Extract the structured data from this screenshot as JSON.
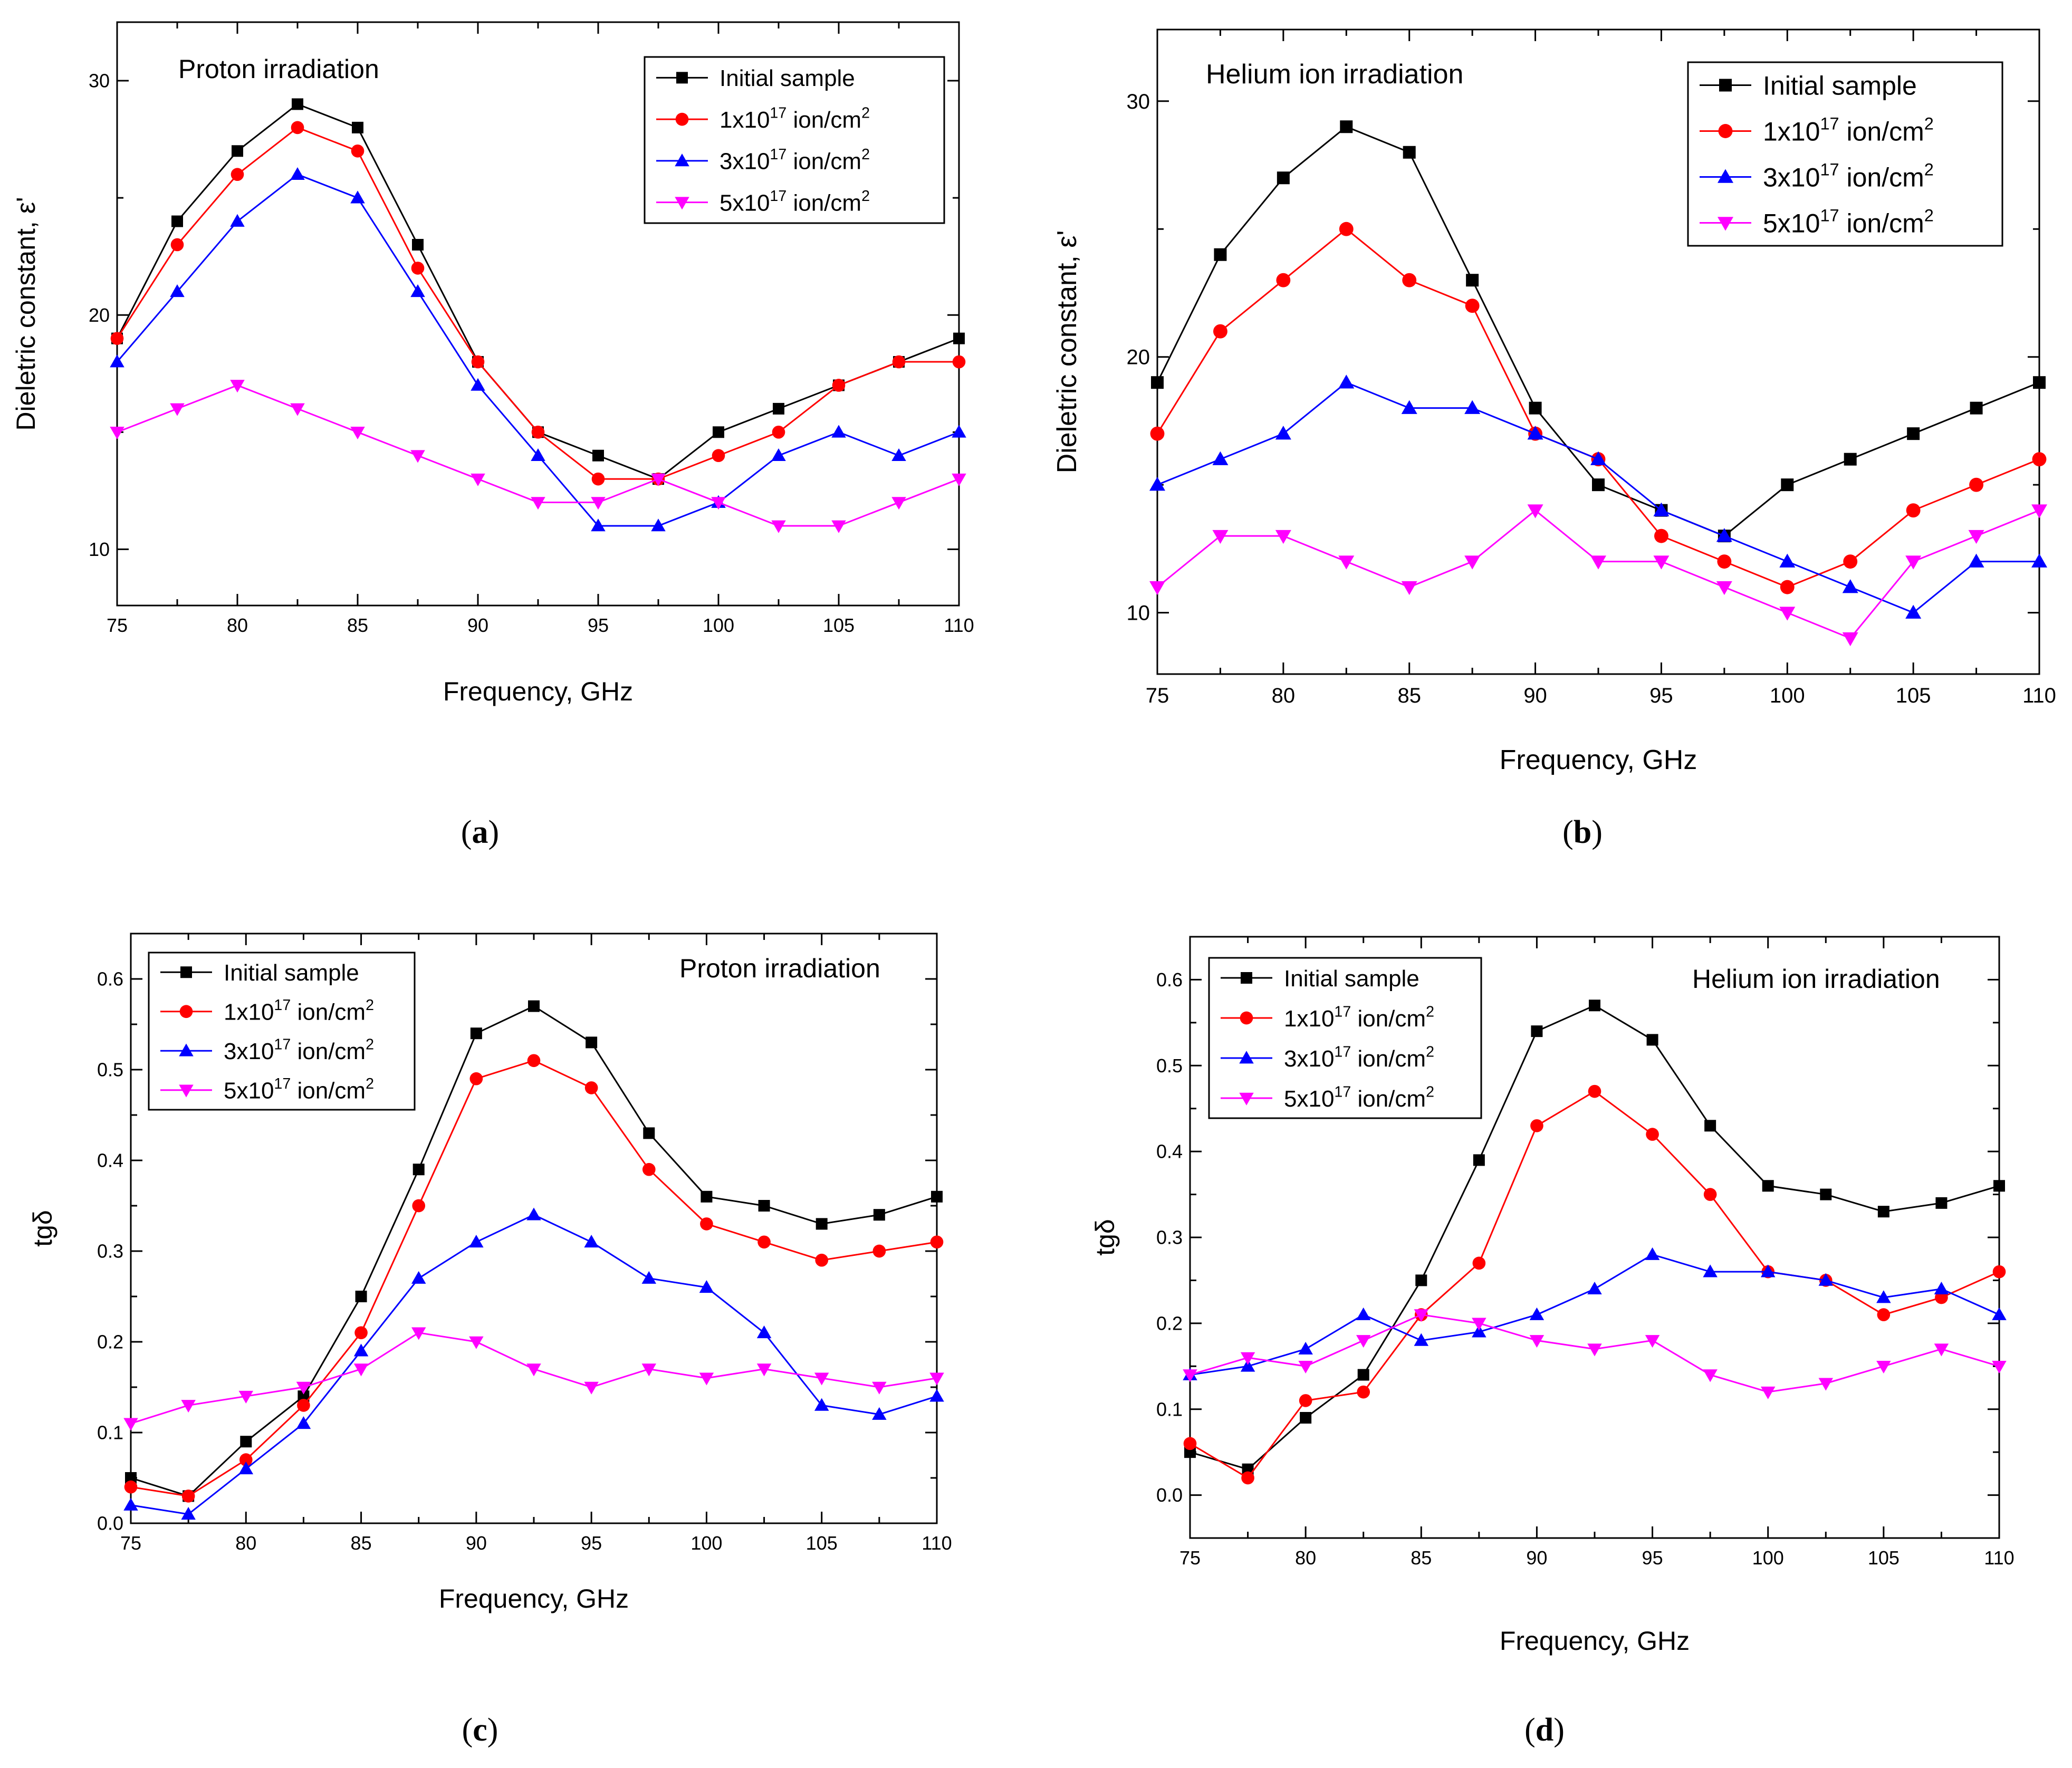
{
  "series_names": [
    "Initial sample",
    "1x10^17 ion/cm^2",
    "3x10^17 ion/cm^2",
    "5x10^17 ion/cm^2"
  ],
  "series_colors": [
    "#000000",
    "#ff0000",
    "#0000ff",
    "#ff00ff"
  ],
  "series_markers": [
    "square",
    "circle",
    "triangle-up",
    "triangle-down"
  ],
  "legend_parts": [
    {
      "main": "Initial sample"
    },
    {
      "pre": "1x10",
      "sup1": "17",
      "mid": " ion/cm",
      "sup2": "2"
    },
    {
      "pre": "3x10",
      "sup1": "17",
      "mid": " ion/cm",
      "sup2": "2"
    },
    {
      "pre": "5x10",
      "sup1": "17",
      "mid": " ion/cm",
      "sup2": "2"
    }
  ],
  "chart_data": [
    {
      "id": "a",
      "caption_letter": "a",
      "type": "line",
      "title": "Proton irradiation",
      "xlabel": "Frequency, GHz",
      "ylabel": "Dieletric constant, ε'",
      "xlim": [
        75,
        110
      ],
      "ylim": [
        7.6,
        32.5
      ],
      "xticks": [
        75,
        80,
        85,
        90,
        95,
        100,
        105,
        110
      ],
      "yticks": [
        10,
        20,
        30
      ],
      "yticks_minor": [
        15,
        25
      ],
      "legend_position": "top-right",
      "x": [
        75,
        77.5,
        80,
        82.5,
        85,
        87.5,
        90,
        92.5,
        95,
        97.5,
        100,
        102.5,
        105,
        107.5,
        110
      ],
      "series": [
        {
          "name": "Initial sample",
          "values": [
            19,
            24,
            27,
            29,
            28,
            23,
            18,
            15,
            14,
            13,
            15,
            16,
            17,
            18,
            19
          ]
        },
        {
          "name": "1x10^17 ion/cm^2",
          "values": [
            19,
            23,
            26,
            28,
            27,
            22,
            18,
            15,
            13,
            13,
            14,
            15,
            17,
            18,
            18
          ]
        },
        {
          "name": "3x10^17 ion/cm^2",
          "values": [
            18,
            21,
            24,
            26,
            25,
            21,
            17,
            14,
            11,
            11,
            12,
            14,
            15,
            14,
            15
          ]
        },
        {
          "name": "5x10^17 ion/cm^2",
          "values": [
            15,
            16,
            17,
            16,
            15,
            14,
            13,
            12,
            12,
            13,
            12,
            11,
            11,
            12,
            13
          ]
        }
      ]
    },
    {
      "id": "b",
      "caption_letter": "b",
      "type": "line",
      "title": "Helium ion irradiation",
      "xlabel": "Frequency, GHz",
      "ylabel": "Dieletric constant, ε'",
      "xlim": [
        75,
        110
      ],
      "ylim": [
        7.6,
        32.8
      ],
      "xticks": [
        75,
        80,
        85,
        90,
        95,
        100,
        105,
        110
      ],
      "yticks": [
        10,
        20,
        30
      ],
      "yticks_minor": [
        15,
        25
      ],
      "legend_position": "top-right",
      "x": [
        75,
        77.5,
        80,
        82.5,
        85,
        87.5,
        90,
        92.5,
        95,
        97.5,
        100,
        102.5,
        105,
        107.5,
        110
      ],
      "series": [
        {
          "name": "Initial sample",
          "values": [
            19,
            24,
            27,
            29,
            28,
            23,
            18,
            15,
            14,
            13,
            15,
            16,
            17,
            18,
            19
          ]
        },
        {
          "name": "1x10^17 ion/cm^2",
          "values": [
            17,
            21,
            23,
            25,
            23,
            22,
            17,
            16,
            13,
            12,
            11,
            12,
            14,
            15,
            16
          ]
        },
        {
          "name": "3x10^17 ion/cm^2",
          "values": [
            15,
            16,
            17,
            19,
            18,
            18,
            17,
            16,
            14,
            13,
            12,
            11,
            10,
            12,
            12
          ]
        },
        {
          "name": "5x10^17 ion/cm^2",
          "values": [
            11,
            13,
            13,
            12,
            11,
            12,
            14,
            12,
            12,
            11,
            10,
            9,
            12,
            13,
            14
          ]
        }
      ]
    },
    {
      "id": "c",
      "caption_letter": "c",
      "type": "line",
      "title": "Proton irradiation",
      "xlabel": "Frequency, GHz",
      "ylabel": "tgδ",
      "xlim": [
        75,
        110
      ],
      "ylim": [
        0.0,
        0.65
      ],
      "xticks": [
        75,
        80,
        85,
        90,
        95,
        100,
        105,
        110
      ],
      "yticks": [
        0.0,
        0.1,
        0.2,
        0.3,
        0.4,
        0.5,
        0.6
      ],
      "ytick_labels": [
        "0.0",
        "0.1",
        "0.2",
        "0.3",
        "0.4",
        "0.5",
        "0.6"
      ],
      "legend_position": "top-left",
      "x": [
        75,
        77.5,
        80,
        82.5,
        85,
        87.5,
        90,
        92.5,
        95,
        97.5,
        100,
        102.5,
        105,
        107.5,
        110
      ],
      "series": [
        {
          "name": "Initial sample",
          "values": [
            0.05,
            0.03,
            0.09,
            0.14,
            0.25,
            0.39,
            0.54,
            0.57,
            0.53,
            0.43,
            0.36,
            0.35,
            0.33,
            0.34,
            0.36
          ]
        },
        {
          "name": "1x10^17 ion/cm^2",
          "values": [
            0.04,
            0.03,
            0.07,
            0.13,
            0.21,
            0.35,
            0.49,
            0.51,
            0.48,
            0.39,
            0.33,
            0.31,
            0.29,
            0.3,
            0.31
          ]
        },
        {
          "name": "3x10^17 ion/cm^2",
          "values": [
            0.02,
            0.01,
            0.06,
            0.11,
            0.19,
            0.27,
            0.31,
            0.34,
            0.31,
            0.27,
            0.26,
            0.21,
            0.13,
            0.12,
            0.14
          ]
        },
        {
          "name": "5x10^17 ion/cm^2",
          "values": [
            0.11,
            0.13,
            0.14,
            0.15,
            0.17,
            0.21,
            0.2,
            0.17,
            0.15,
            0.17,
            0.16,
            0.17,
            0.16,
            0.15,
            0.16
          ]
        }
      ]
    },
    {
      "id": "d",
      "caption_letter": "d",
      "type": "line",
      "title": "Helium ion irradiation",
      "xlabel": "Frequency, GHz",
      "ylabel": "tgδ",
      "xlim": [
        75,
        110
      ],
      "ylim": [
        -0.05,
        0.65
      ],
      "xticks": [
        75,
        80,
        85,
        90,
        95,
        100,
        105,
        110
      ],
      "yticks": [
        0.0,
        0.1,
        0.2,
        0.3,
        0.4,
        0.5,
        0.6
      ],
      "ytick_labels": [
        "0.0",
        "0.1",
        "0.2",
        "0.3",
        "0.4",
        "0.5",
        "0.6"
      ],
      "legend_position": "top-left",
      "x": [
        75,
        77.5,
        80,
        82.5,
        85,
        87.5,
        90,
        92.5,
        95,
        97.5,
        100,
        102.5,
        105,
        107.5,
        110
      ],
      "series": [
        {
          "name": "Initial sample",
          "values": [
            0.05,
            0.03,
            0.09,
            0.14,
            0.25,
            0.39,
            0.54,
            0.57,
            0.53,
            0.43,
            0.36,
            0.35,
            0.33,
            0.34,
            0.36
          ]
        },
        {
          "name": "1x10^17 ion/cm^2",
          "values": [
            0.06,
            0.02,
            0.11,
            0.12,
            0.21,
            0.27,
            0.43,
            0.47,
            0.42,
            0.35,
            0.26,
            0.25,
            0.21,
            0.23,
            0.26
          ]
        },
        {
          "name": "3x10^17 ion/cm^2",
          "values": [
            0.14,
            0.15,
            0.17,
            0.21,
            0.18,
            0.19,
            0.21,
            0.24,
            0.28,
            0.26,
            0.26,
            0.25,
            0.23,
            0.24,
            0.21
          ]
        },
        {
          "name": "5x10^17 ion/cm^2",
          "values": [
            0.14,
            0.16,
            0.15,
            0.18,
            0.21,
            0.2,
            0.18,
            0.17,
            0.18,
            0.14,
            0.12,
            0.13,
            0.15,
            0.17,
            0.15
          ]
        }
      ]
    }
  ]
}
